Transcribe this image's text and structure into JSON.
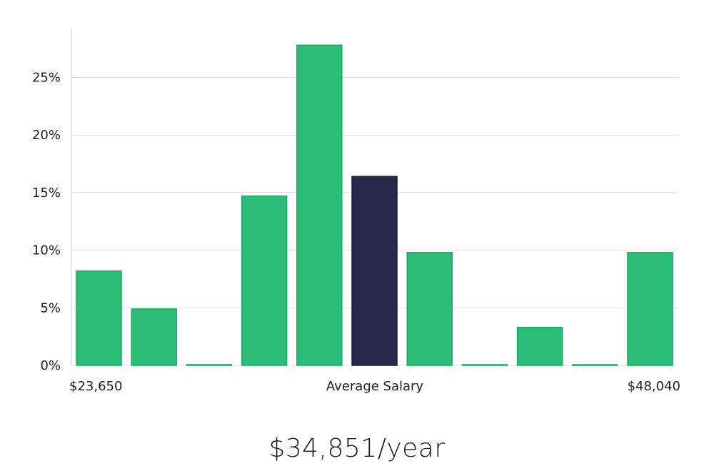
{
  "chart_data": {
    "type": "bar",
    "values": [
      8.2,
      4.9,
      0,
      14.7,
      27.8,
      16.4,
      9.8,
      0,
      3.3,
      0,
      9.8
    ],
    "highlight_index": 5,
    "y_ticks": [
      "0%",
      "5%",
      "10%",
      "15%",
      "20%",
      "25%"
    ],
    "y_tick_values": [
      0,
      5,
      10,
      15,
      20,
      25
    ],
    "ylim": [
      0,
      30
    ],
    "grid": true,
    "x_labels": {
      "left": "$23,650",
      "center": "Average Salary",
      "right": "$48,040"
    }
  },
  "colors": {
    "bar": "#2bbd77",
    "bar_stroke": "#1fa765",
    "highlight": "#282648",
    "grid": "#dedede",
    "axis": "#cfcfcf"
  },
  "salary_text": "$34,851/year"
}
